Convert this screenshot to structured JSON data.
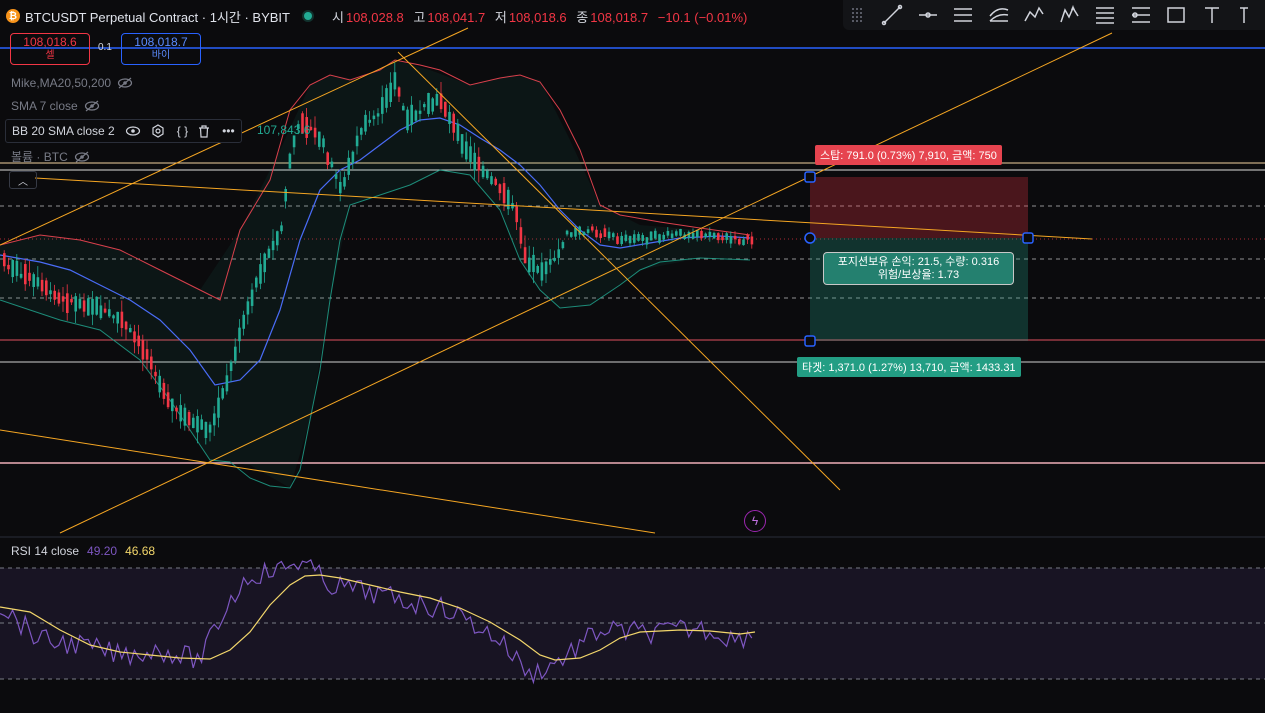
{
  "header": {
    "coin_icon": "bitcoin-icon",
    "symbol_title": "BTCUSDT Perpetual Contract · 1시간 · BYBIT",
    "status_color": "#22ab94",
    "ohlc": [
      {
        "key": "시",
        "value": "108,028.8"
      },
      {
        "key": "고",
        "value": "108,041.7"
      },
      {
        "key": "저",
        "value": "108,018.6"
      },
      {
        "key": "종",
        "value": "108,018.7"
      }
    ],
    "change": "−10.1 (−0.01%)"
  },
  "toolbar": {
    "tools": [
      "trend-line-icon",
      "horizontal-line-icon",
      "parallel-channel-icon",
      "pitchfork-icon",
      "pattern-icon",
      "elliott-wave-icon",
      "fib-retracement-icon",
      "gann-icon",
      "rectangle-icon",
      "text-icon",
      "more-icon"
    ]
  },
  "trade": {
    "sell_price": "108,018.6",
    "sell_label": "셀",
    "buy_price": "108,018.7",
    "buy_label": "바이",
    "spread": "0.1"
  },
  "indicators": {
    "ma": "Mike,MA20,50,200",
    "sma": "SMA 7 close",
    "bb": "BB 20 SMA close 2",
    "bb_value": "107,843.6",
    "volume": "볼륨 · BTC"
  },
  "position": {
    "stop_label": "스탑: 791.0 (0.73%) 7,910, 금액: 750",
    "target_label": "타겟: 1,371.0 (1.27%) 13,710, 금액: 1433.31",
    "info_line1": "포지션보유 손익: 21.5, 수량: 0.316",
    "info_line2": "위험/보상율: 1.73"
  },
  "rsi": {
    "name": "RSI 14 close",
    "value": "49.20",
    "ma_value": "46.68"
  },
  "colors": {
    "up": "#22ab94",
    "down": "#f23645",
    "accent": "#2962ff",
    "trendline": "#f5a623"
  }
}
